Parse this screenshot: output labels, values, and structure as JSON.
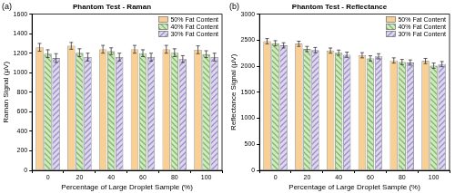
{
  "chart_data": [
    {
      "type": "bar",
      "annotation": "(a)",
      "title": "Phantom Test - Raman",
      "x_label": "Percentage of Large Droplet Sample (%)",
      "y_label": "Raman Signal (μV)",
      "categories": [
        "0",
        "20",
        "40",
        "60",
        "80",
        "100"
      ],
      "series": [
        {
          "name": "50% Fat Content",
          "color": "#f8cf94",
          "values": [
            1260,
            1275,
            1240,
            1240,
            1240,
            1235
          ],
          "errors": [
            40,
            35,
            40,
            40,
            40,
            40
          ]
        },
        {
          "name": "40% Fat Content",
          "color": "#7cba5a",
          "values": [
            1195,
            1205,
            1220,
            1200,
            1205,
            1190
          ],
          "errors": [
            40,
            40,
            35,
            35,
            40,
            35
          ]
        },
        {
          "name": "30% Fat Content",
          "color": "#9c8cc8",
          "values": [
            1150,
            1160,
            1160,
            1160,
            1140,
            1160
          ],
          "errors": [
            45,
            40,
            40,
            40,
            35,
            40
          ]
        }
      ],
      "ylim": [
        0,
        1600
      ],
      "yticks": [
        0,
        200,
        400,
        600,
        800,
        1000,
        1200,
        1400,
        1600
      ],
      "grid": false,
      "legend": "upper right"
    },
    {
      "type": "bar",
      "annotation": "(b)",
      "title": "Phantom Test - Reflectance",
      "x_label": "Percentage of Large Droplet Sample (%)",
      "y_label": "Reflectance Signal (μV)",
      "categories": [
        "0",
        "20",
        "40",
        "60",
        "80",
        "100"
      ],
      "series": [
        {
          "name": "50% Fat Content",
          "color": "#f8cf94",
          "values": [
            2480,
            2430,
            2300,
            2210,
            2110,
            2100
          ],
          "errors": [
            50,
            50,
            50,
            50,
            50,
            50
          ]
        },
        {
          "name": "40% Fat Content",
          "color": "#7cba5a",
          "values": [
            2440,
            2330,
            2260,
            2150,
            2080,
            2010
          ],
          "errors": [
            50,
            50,
            50,
            50,
            50,
            50
          ]
        },
        {
          "name": "30% Fat Content",
          "color": "#9c8cc8",
          "values": [
            2400,
            2310,
            2220,
            2190,
            2070,
            2040
          ],
          "errors": [
            50,
            50,
            50,
            50,
            50,
            50
          ]
        }
      ],
      "ylim": [
        0,
        3000
      ],
      "yticks": [
        0,
        500,
        1000,
        1500,
        2000,
        2500,
        3000
      ],
      "grid": false,
      "legend": "upper right"
    }
  ]
}
